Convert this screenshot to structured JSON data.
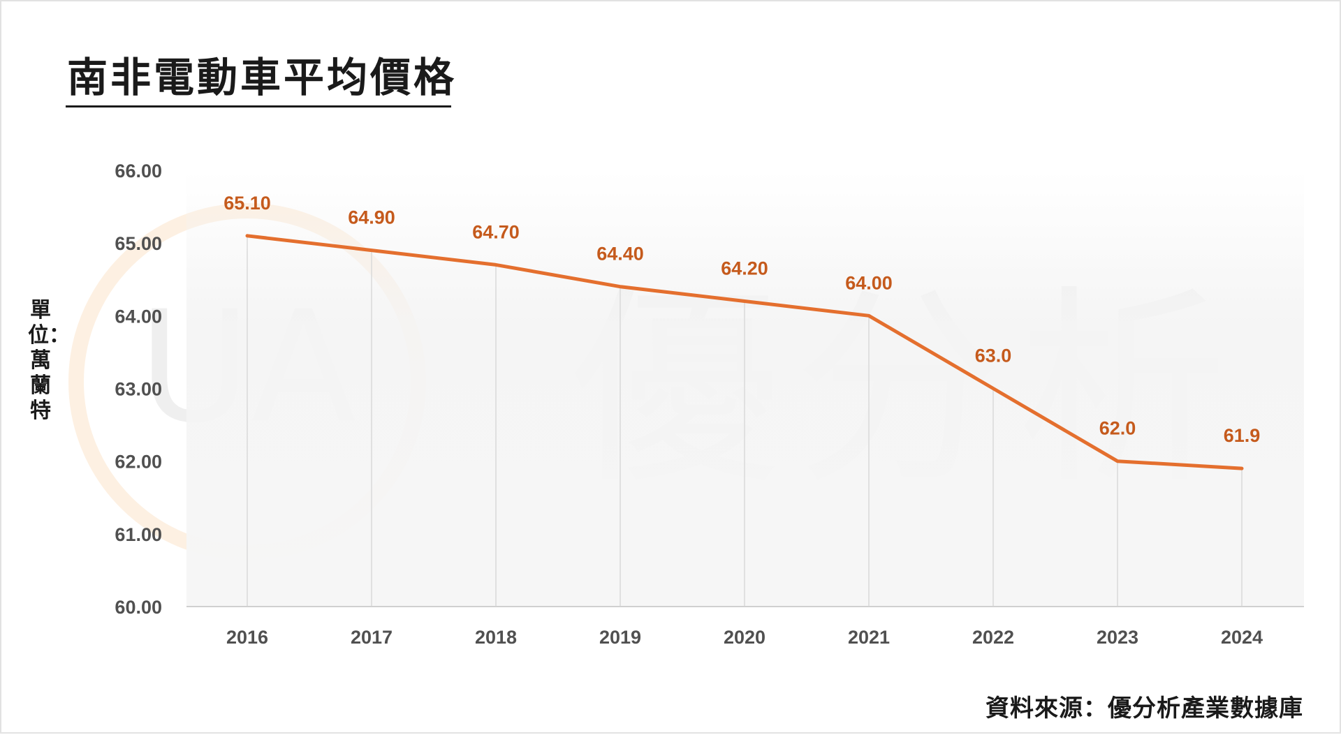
{
  "title": "南非電動車平均價格",
  "unit_label": "單位：萬蘭特",
  "source": "資料來源：優分析產業數據庫",
  "watermark": {
    "text": "優分析",
    "logo_letters": "UA"
  },
  "colors": {
    "line": "#e46f2e",
    "data_label": "#c55a1c",
    "grid": "#d9d9d9",
    "tick_label": "#505050",
    "title": "#1a1a1a"
  },
  "chart_data": {
    "type": "line",
    "title": "南非電動車平均價格",
    "xlabel": "",
    "ylabel": "單位：萬蘭特",
    "categories": [
      "2016",
      "2017",
      "2018",
      "2019",
      "2020",
      "2021",
      "2022",
      "2023",
      "2024"
    ],
    "series": [
      {
        "values": [
          65.1,
          64.9,
          64.7,
          64.4,
          64.2,
          64.0,
          63.0,
          62.0,
          61.9
        ],
        "labels": [
          "65.10",
          "64.90",
          "64.70",
          "64.40",
          "64.20",
          "64.00",
          "63.0",
          "62.0",
          "61.9"
        ]
      }
    ],
    "ylim": [
      60,
      66
    ],
    "y_ticks": [
      "60.00",
      "61.00",
      "62.00",
      "63.00",
      "64.00",
      "65.00",
      "66.00"
    ],
    "grid": "vertical lines at categories",
    "legend": "none"
  }
}
